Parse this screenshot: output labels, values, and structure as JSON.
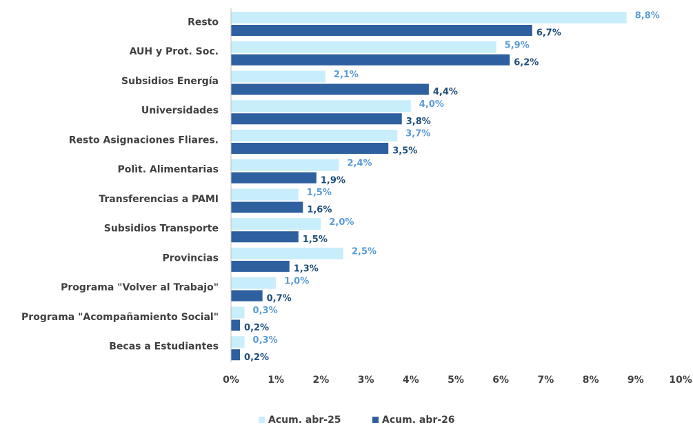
{
  "chart_data": {
    "type": "bar",
    "orientation": "horizontal",
    "categories": [
      "Resto",
      "AUH y Prot. Soc.",
      "Subsidios Energía",
      "Universidades",
      "Resto Asignaciones Fliares.",
      "Polìt. Alimentarias",
      "Transferencias a PAMI",
      "Subsidios Transporte",
      "Provincias",
      "Programa \"Volver al Trabajo\"",
      "Programa \"Acompañamiento Social\"",
      "Becas a Estudiantes"
    ],
    "series": [
      {
        "name": "Acum. abr-25",
        "color": "#c9eefb",
        "label_color": "#5b9bd5",
        "values": [
          8.8,
          5.9,
          2.1,
          4.0,
          3.7,
          2.4,
          1.5,
          2.0,
          2.5,
          1.0,
          0.3,
          0.3
        ],
        "value_labels": [
          "8,8%",
          "5,9%",
          "2,1%",
          "4,0%",
          "3,7%",
          "2,4%",
          "1,5%",
          "2,0%",
          "2,5%",
          "1,0%",
          "0,3%",
          "0,3%"
        ]
      },
      {
        "name": "Acum. abr-26",
        "color": "#2e5f9e",
        "label_color": "#1f4e79",
        "values": [
          6.7,
          6.2,
          4.4,
          3.8,
          3.5,
          1.9,
          1.6,
          1.5,
          1.3,
          0.7,
          0.2,
          0.2
        ],
        "value_labels": [
          "6,7%",
          "6,2%",
          "4,4%",
          "3,8%",
          "3,5%",
          "1,9%",
          "1,6%",
          "1,5%",
          "1,3%",
          "0,7%",
          "0,2%",
          "0,2%"
        ]
      }
    ],
    "xlim": [
      0,
      10
    ],
    "xticks": [
      {
        "value": 0,
        "label": "0%"
      },
      {
        "value": 1,
        "label": "1%"
      },
      {
        "value": 2,
        "label": "2%"
      },
      {
        "value": 3,
        "label": "3%"
      },
      {
        "value": 4,
        "label": "4%"
      },
      {
        "value": 5,
        "label": "5%"
      },
      {
        "value": 6,
        "label": "6%"
      },
      {
        "value": 7,
        "label": "7%"
      },
      {
        "value": 8,
        "label": "8%"
      },
      {
        "value": 9,
        "label": "9%"
      },
      {
        "value": 10,
        "label": "10%"
      }
    ],
    "legend": "bottom"
  }
}
